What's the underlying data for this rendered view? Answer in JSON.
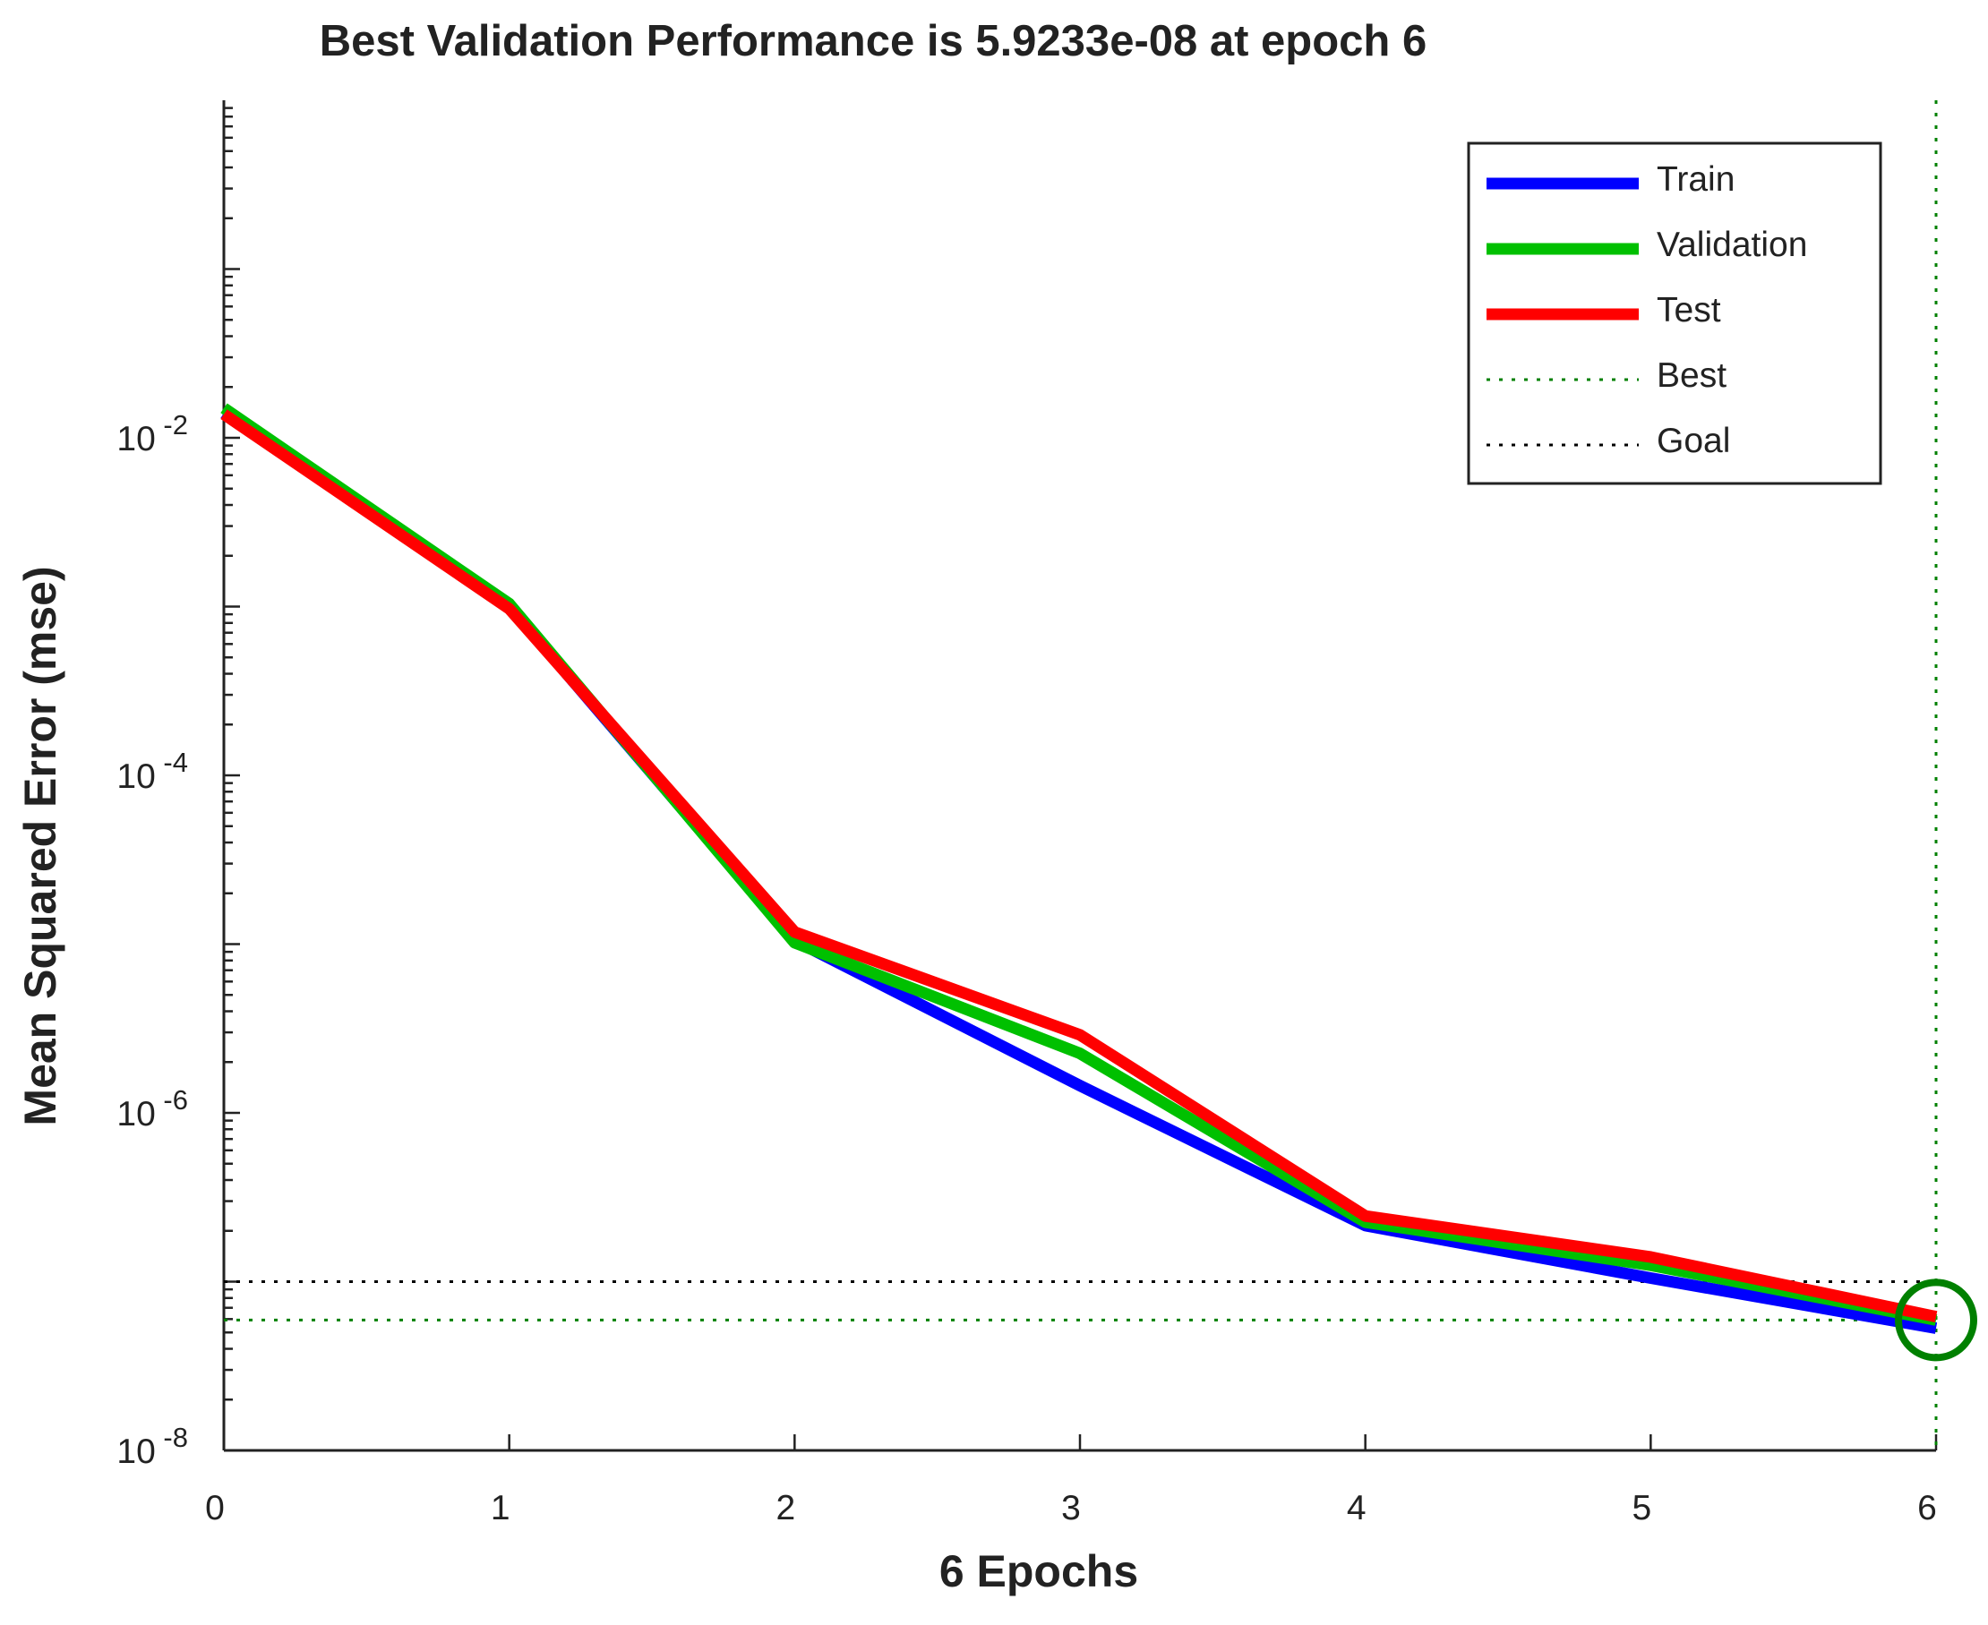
{
  "chart_data": {
    "type": "line",
    "title": "Best Validation Performance is 5.9233e-08 at epoch 6",
    "xlabel": "6 Epochs",
    "ylabel": "Mean Squared Error  (mse)",
    "yscale": "log",
    "xlim": [
      0,
      6
    ],
    "ylim": [
      1e-08,
      1
    ],
    "x": [
      0,
      1,
      2,
      3,
      4,
      5,
      6
    ],
    "x_tick_labels": [
      "0",
      "1",
      "2",
      "3",
      "4",
      "5",
      "6"
    ],
    "y_ticks": [
      {
        "base": "10",
        "exp": "-2"
      },
      {
        "base": "10",
        "exp": "-4"
      },
      {
        "base": "10",
        "exp": "-6"
      },
      {
        "base": "10",
        "exp": "-8"
      }
    ],
    "series": [
      {
        "name": "Train",
        "color": "#0000ff",
        "values": [
          0.014,
          0.001,
          1.05e-05,
          1.45e-06,
          2.15e-07,
          1.05e-07,
          5.3e-08
        ]
      },
      {
        "name": "Validation",
        "color": "#00c000",
        "values": [
          0.015,
          0.00104,
          1.02e-05,
          2.25e-06,
          2.25e-07,
          1.25e-07,
          5.9233e-08
        ]
      },
      {
        "name": "Test",
        "color": "#ff0000",
        "values": [
          0.0138,
          0.00097,
          1.18e-05,
          2.9e-06,
          2.45e-07,
          1.4e-07,
          6.2e-08
        ]
      }
    ],
    "reference_lines": [
      {
        "name": "Best",
        "type": "dotted",
        "color": "#008000",
        "y": 5.9233e-08,
        "x": 6
      },
      {
        "name": "Goal",
        "type": "dotted",
        "color": "#000000",
        "y": 1e-07
      }
    ],
    "best_marker": {
      "x": 6,
      "y": 5.9233e-08,
      "color": "#008000"
    },
    "legend": {
      "position": "top-right",
      "entries": [
        "Train",
        "Validation",
        "Test",
        "Best",
        "Goal"
      ]
    }
  }
}
